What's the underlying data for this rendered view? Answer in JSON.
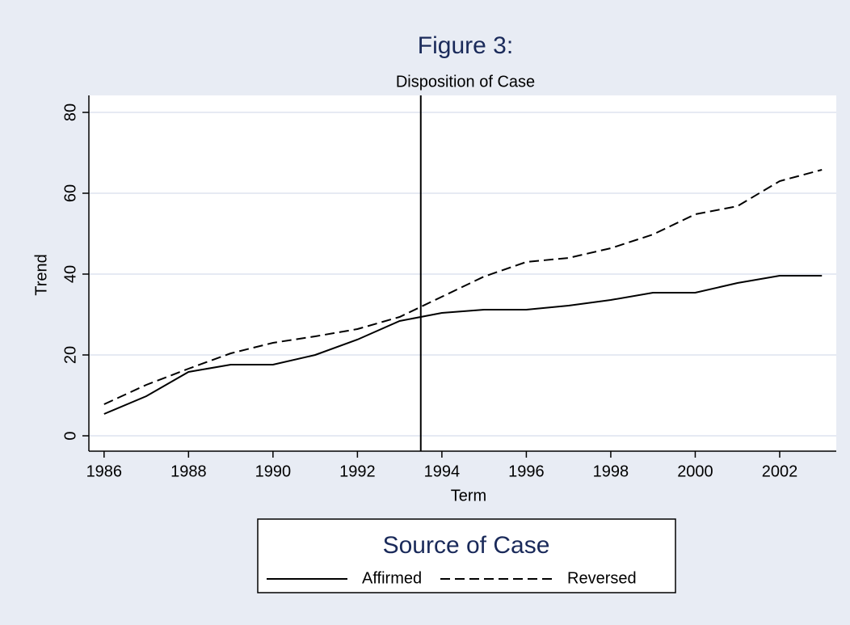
{
  "chart_data": {
    "type": "line",
    "title": "Figure 3:",
    "subtitle": "Disposition of Case",
    "x_label": "Term",
    "y_label": "Trend",
    "x": [
      1986,
      1987,
      1988,
      1989,
      1990,
      1991,
      1992,
      1993,
      1994,
      1995,
      1996,
      1997,
      1998,
      1999,
      2000,
      2001,
      2002,
      2003
    ],
    "series": [
      {
        "name": "Affirmed",
        "color": "#000000",
        "dash": false,
        "values": [
          5.4,
          9.8,
          15.8,
          17.6,
          17.6,
          20,
          23.8,
          28.4,
          30.4,
          31.2,
          31.2,
          32.2,
          33.6,
          35.4,
          35.4,
          37.8,
          39.6,
          39.6
        ]
      },
      {
        "name": "Reversed",
        "color": "#000000",
        "dash": true,
        "values": [
          7.8,
          12.6,
          16.6,
          20.4,
          23,
          24.6,
          26.4,
          29.4,
          34.4,
          39.4,
          43,
          44,
          46.4,
          49.8,
          54.8,
          56.8,
          63,
          65.8
        ]
      }
    ],
    "vline": 1993.5,
    "xlim": [
      1985.64,
      2003.34
    ],
    "ylim": [
      -3.8,
      84.2
    ],
    "xticks": [
      1986,
      1988,
      1990,
      1992,
      1994,
      1996,
      1998,
      2000,
      2002
    ],
    "yticks": [
      0,
      20,
      40,
      60,
      80
    ],
    "grid": true,
    "legend_title": "Source of Case",
    "legend_position": "bottom"
  }
}
